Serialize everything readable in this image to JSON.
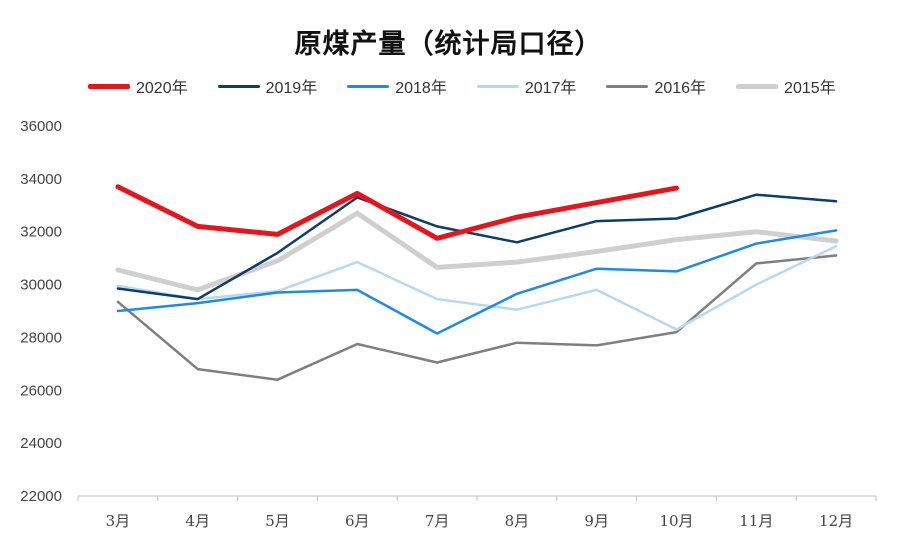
{
  "chart_data": {
    "type": "line",
    "title": "原煤产量（统计局口径）",
    "xlabel": "",
    "ylabel": "",
    "categories": [
      "3月",
      "4月",
      "5月",
      "6月",
      "7月",
      "8月",
      "9月",
      "10月",
      "11月",
      "12月"
    ],
    "ylim": [
      22000,
      36000
    ],
    "yticks": [
      22000,
      24000,
      26000,
      28000,
      30000,
      32000,
      34000,
      36000
    ],
    "grid": false,
    "legend_position": "top",
    "series": [
      {
        "name": "2020年",
        "color": "#e8141b",
        "width": 5,
        "values": [
          33700,
          32200,
          31900,
          33450,
          31750,
          32550,
          33100,
          33650,
          null,
          null
        ]
      },
      {
        "name": "2019年",
        "color": "#0c3d6b",
        "width": 2.5,
        "values": [
          29850,
          29450,
          31200,
          33300,
          32200,
          31600,
          32400,
          32500,
          33400,
          33150
        ]
      },
      {
        "name": "2018年",
        "color": "#1f8ae6",
        "width": 2.5,
        "values": [
          29000,
          29300,
          29700,
          29800,
          28150,
          29650,
          30600,
          30500,
          31550,
          32050
        ]
      },
      {
        "name": "2017年",
        "color": "#b5d9f5",
        "width": 2.5,
        "values": [
          29950,
          29450,
          29750,
          30850,
          29450,
          29050,
          29800,
          28300,
          30000,
          31450
        ]
      },
      {
        "name": "2016年",
        "color": "#7f7f7f",
        "width": 2.5,
        "values": [
          29350,
          26800,
          26400,
          27750,
          27050,
          27800,
          27700,
          28200,
          30800,
          31100
        ]
      },
      {
        "name": "2015年",
        "color": "#cfcfcf",
        "width": 5,
        "values": [
          30550,
          29800,
          30900,
          32700,
          30650,
          30850,
          31250,
          31700,
          32000,
          31650
        ]
      }
    ]
  }
}
